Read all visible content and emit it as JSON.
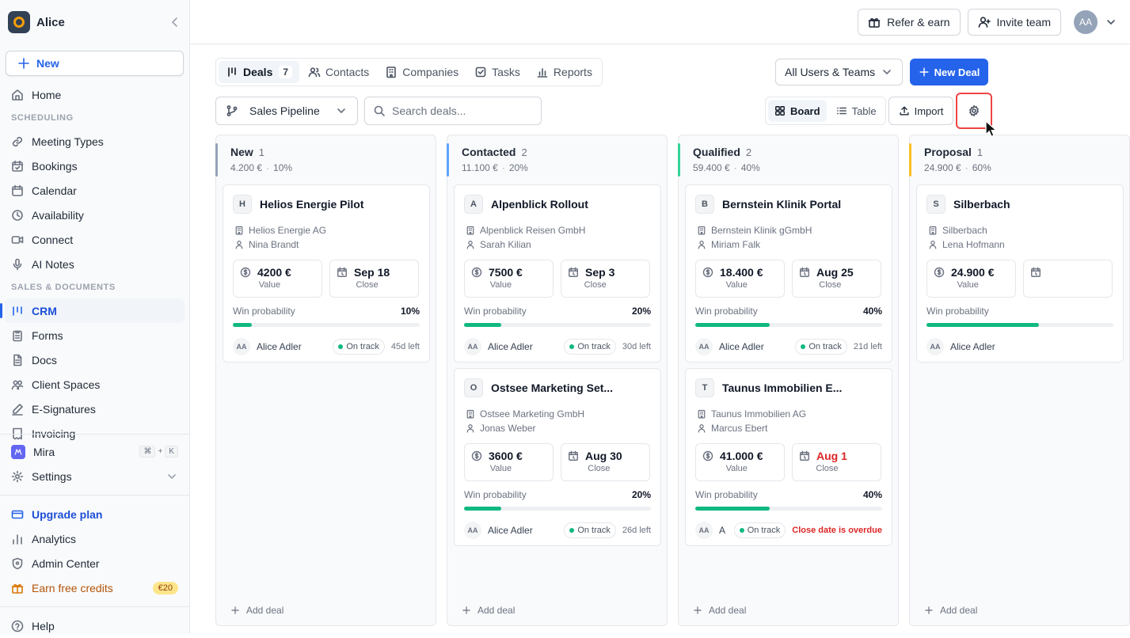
{
  "sidebar": {
    "brand": "Alice",
    "new_label": "New",
    "home": "Home",
    "section_scheduling": "SCHEDULING",
    "scheduling": [
      "Meeting Types",
      "Bookings",
      "Calendar",
      "Availability",
      "Connect",
      "AI Notes"
    ],
    "section_sales": "SALES & DOCUMENTS",
    "sales": [
      "CRM",
      "Forms",
      "Docs",
      "Client Spaces",
      "E-Signatures",
      "Invoicing"
    ],
    "mira": "Mira",
    "kbd": [
      "⌘",
      "+",
      "K"
    ],
    "settings": "Settings",
    "upgrade": "Upgrade plan",
    "analytics": "Analytics",
    "admin": "Admin Center",
    "earn": "Earn free credits",
    "credit_badge": "€20",
    "help": "Help"
  },
  "topbar": {
    "refer": "Refer & earn",
    "invite": "Invite team",
    "avatar": "AA"
  },
  "tabs": [
    {
      "label": "Deals",
      "count": "7"
    },
    {
      "label": "Contacts"
    },
    {
      "label": "Companies"
    },
    {
      "label": "Tasks"
    },
    {
      "label": "Reports"
    }
  ],
  "filters": {
    "users": "All Users & Teams",
    "new_deal": "New Deal",
    "pipeline": "Sales Pipeline",
    "search_placeholder": "Search deals...",
    "board": "Board",
    "table": "Table",
    "import": "Import"
  },
  "columns": [
    {
      "title": "New",
      "count": "1",
      "amount": "4.200 €",
      "pct": "10%",
      "accent": "#94a3b8",
      "add": "Add deal",
      "cards": [
        {
          "initial": "H",
          "name": "Helios Energie Pilot",
          "company": "Helios Energie AG",
          "contact": "Nina Brandt",
          "value": "4200 €",
          "value_label": "Value",
          "close": "Sep 18",
          "close_label": "Close",
          "win_label": "Win probability",
          "win": "10%",
          "win_fraction": 0.1,
          "owner": "Alice Adler",
          "owner_initials": "AA",
          "status": "On track",
          "left": "45d left"
        }
      ]
    },
    {
      "title": "Contacted",
      "count": "2",
      "amount": "11.100 €",
      "pct": "20%",
      "accent": "#60a5fa",
      "add": "Add deal",
      "cards": [
        {
          "initial": "A",
          "name": "Alpenblick Rollout",
          "company": "Alpenblick Reisen GmbH",
          "contact": "Sarah Kilian",
          "value": "7500 €",
          "value_label": "Value",
          "close": "Sep 3",
          "close_label": "Close",
          "win_label": "Win probability",
          "win": "20%",
          "win_fraction": 0.2,
          "owner": "Alice Adler",
          "owner_initials": "AA",
          "status": "On track",
          "left": "30d left"
        },
        {
          "initial": "O",
          "name": "Ostsee Marketing Set...",
          "company": "Ostsee Marketing GmbH",
          "contact": "Jonas Weber",
          "value": "3600 €",
          "value_label": "Value",
          "close": "Aug 30",
          "close_label": "Close",
          "win_label": "Win probability",
          "win": "20%",
          "win_fraction": 0.2,
          "owner": "Alice Adler",
          "owner_initials": "AA",
          "status": "On track",
          "left": "26d left"
        }
      ]
    },
    {
      "title": "Qualified",
      "count": "2",
      "amount": "59.400 €",
      "pct": "40%",
      "accent": "#34d399",
      "add": "Add deal",
      "cards": [
        {
          "initial": "B",
          "name": "Bernstein Klinik Portal",
          "company": "Bernstein Klinik gGmbH",
          "contact": "Miriam Falk",
          "value": "18.400 €",
          "value_label": "Value",
          "close": "Aug 25",
          "close_label": "Close",
          "win_label": "Win probability",
          "win": "40%",
          "win_fraction": 0.4,
          "owner": "Alice Adler",
          "owner_initials": "AA",
          "status": "On track",
          "left": "21d left"
        },
        {
          "initial": "T",
          "name": "Taunus Immobilien E...",
          "company": "Taunus Immobilien AG",
          "contact": "Marcus Ebert",
          "value": "41.000 €",
          "value_label": "Value",
          "close": "Aug 1",
          "close_label": "Close",
          "close_overdue": true,
          "win_label": "Win probability",
          "win": "40%",
          "win_fraction": 0.4,
          "owner": "A",
          "owner_initials": "AA",
          "status": "On track",
          "left": "Close date is overdue",
          "left_overdue": true
        }
      ]
    },
    {
      "title": "Proposal",
      "count": "1",
      "amount": "24.900 €",
      "pct": "60%",
      "accent": "#fbbf24",
      "add": "Add deal",
      "cards": [
        {
          "initial": "S",
          "name": "Silberbach",
          "company": "Silberbach",
          "contact": "Lena Hofmann",
          "value": "24.900 €",
          "value_label": "Value",
          "close": "",
          "close_label": "",
          "win_label": "Win probability",
          "win": "",
          "win_fraction": 0.6,
          "owner": "Alice Adler",
          "owner_initials": "AA",
          "status": "",
          "left": ""
        }
      ]
    }
  ]
}
